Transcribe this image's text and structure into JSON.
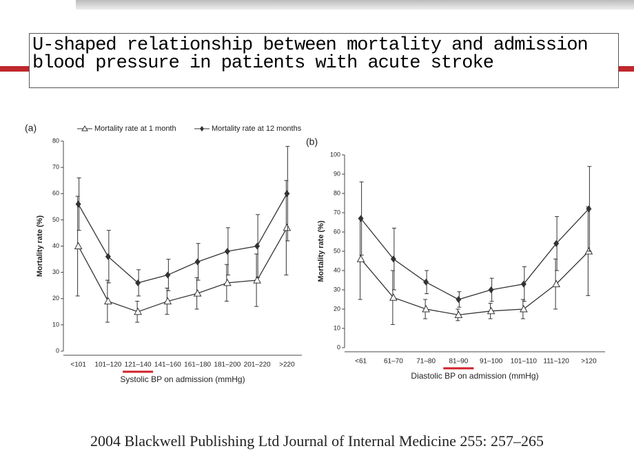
{
  "slide": {
    "title": "U-shaped relationship between mortality and admission blood pressure in patients with acute stroke",
    "citation": "2004 Blackwell Publishing Ltd Journal of Internal Medicine 255: 257–265"
  },
  "chart_data": [
    {
      "type": "line",
      "panel": "(a)",
      "ylabel": "Mortality rate (%)",
      "xlabel": "Systolic BP on admission (mmHg)",
      "categories": [
        "<101",
        "101–120",
        "121–140",
        "141–160",
        "161–180",
        "181–200",
        "201–220",
        ">220"
      ],
      "highlight_index": 2,
      "ylim": [
        0,
        80
      ],
      "yticks": [
        0,
        10,
        20,
        30,
        40,
        50,
        60,
        70,
        80
      ],
      "series": [
        {
          "name": "Mortality rate at 1 month",
          "color": "#333333",
          "marker": "triangle-open",
          "values": [
            40,
            19,
            15,
            19,
            22,
            26,
            27,
            47
          ],
          "errors": [
            19,
            8,
            4,
            5,
            6,
            7,
            10,
            18
          ]
        },
        {
          "name": "Mortality rate at 12 months",
          "color": "#333333",
          "marker": "diamond",
          "values": [
            56,
            36,
            26,
            29,
            34,
            38,
            40,
            60
          ],
          "errors": [
            10,
            10,
            5,
            6,
            7,
            9,
            12,
            18
          ]
        }
      ]
    },
    {
      "type": "line",
      "panel": "(b)",
      "ylabel": "Mortality rate (%)",
      "xlabel": "Diastolic BP on admission (mmHg)",
      "categories": [
        "<61",
        "61–70",
        "71–80",
        "81–90",
        "91–100",
        "101–110",
        "111–120",
        ">120"
      ],
      "highlight_index": 3,
      "ylim": [
        0,
        100
      ],
      "yticks": [
        0,
        10,
        20,
        30,
        40,
        50,
        60,
        70,
        80,
        90,
        100
      ],
      "series": [
        {
          "color": "#333333",
          "marker": "triangle-open",
          "values": [
            46,
            26,
            20,
            17,
            19,
            20,
            33,
            50
          ],
          "errors": [
            21,
            14,
            5,
            3,
            4,
            5,
            13,
            23
          ]
        },
        {
          "color": "#333333",
          "marker": "diamond",
          "values": [
            67,
            46,
            34,
            25,
            30,
            33,
            54,
            72
          ],
          "errors": [
            19,
            16,
            6,
            4,
            6,
            9,
            14,
            22
          ]
        }
      ]
    }
  ]
}
